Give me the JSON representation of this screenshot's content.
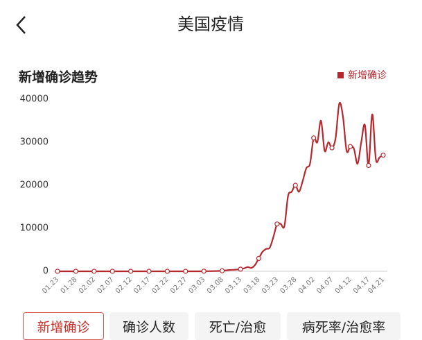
{
  "header": {
    "title": "美国疫情"
  },
  "chart_data": {
    "type": "line",
    "title": "新增确诊趋势",
    "categories": [
      "01.23",
      null,
      null,
      null,
      null,
      "01.28",
      null,
      null,
      null,
      null,
      "02.02",
      null,
      null,
      null,
      null,
      "02.07",
      null,
      null,
      null,
      null,
      "02.12",
      null,
      null,
      null,
      null,
      "02.17",
      null,
      null,
      null,
      null,
      "02.22",
      null,
      null,
      null,
      null,
      "02.27",
      null,
      null,
      null,
      null,
      "03.03",
      null,
      null,
      null,
      null,
      "03.08",
      null,
      null,
      null,
      null,
      "03.13",
      null,
      null,
      null,
      null,
      "03.18",
      null,
      null,
      null,
      null,
      "03.23",
      null,
      null,
      null,
      null,
      "03.28",
      null,
      null,
      null,
      null,
      "04.02",
      null,
      null,
      null,
      null,
      "04.07",
      null,
      null,
      null,
      null,
      "04.12",
      null,
      null,
      null,
      null,
      "04.17",
      null,
      null,
      null,
      "04.21"
    ],
    "series": [
      {
        "name": "新增确诊",
        "color": "#b5282e",
        "values": [
          0,
          0,
          0,
          0,
          0,
          0,
          0,
          0,
          0,
          0,
          0,
          0,
          0,
          0,
          0,
          0,
          0,
          0,
          0,
          0,
          0,
          0,
          0,
          0,
          0,
          0,
          0,
          0,
          0,
          0,
          0,
          0,
          0,
          0,
          0,
          0,
          0,
          0,
          0,
          0,
          20,
          30,
          40,
          60,
          80,
          120,
          200,
          300,
          350,
          400,
          500,
          700,
          1000,
          800,
          1500,
          3000,
          4500,
          5200,
          5500,
          8000,
          11000,
          11000,
          10500,
          17500,
          18500,
          20000,
          18500,
          21000,
          24000,
          25000,
          31000,
          30000,
          35000,
          28000,
          30000,
          28700,
          31000,
          39000,
          36000,
          28000,
          29000,
          28500,
          25000,
          30000,
          34000,
          24600,
          36500,
          26000,
          26500,
          27000
        ]
      }
    ],
    "ylim": [
      0,
      40000
    ],
    "yticks": [
      0,
      10000,
      20000,
      30000,
      40000
    ],
    "grid": false,
    "legend": "top-right"
  },
  "tabs": [
    "新增确诊",
    "确诊人数",
    "死亡/治愈",
    "病死率/治愈率"
  ]
}
